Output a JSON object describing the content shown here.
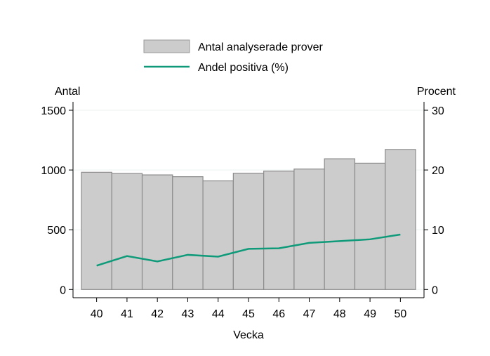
{
  "chart_data": {
    "type": "bar",
    "categories": [
      "40",
      "41",
      "42",
      "43",
      "44",
      "45",
      "46",
      "47",
      "48",
      "49",
      "50"
    ],
    "xlabel": "Vecka",
    "ylabel_left": "Antal",
    "ylabel_right": "Procent",
    "ylim_left": [
      0,
      1500
    ],
    "yticks_left": [
      0,
      500,
      1000,
      1500
    ],
    "ylim_right": [
      0,
      30
    ],
    "yticks_right": [
      0,
      10,
      20,
      30
    ],
    "grid": true,
    "legend_placement": "top",
    "series": [
      {
        "name": "Antal analyserade prover",
        "type": "bar",
        "axis": "left",
        "color": "#cccccc",
        "values": [
          981,
          971,
          959,
          944,
          909,
          973,
          991,
          1008,
          1094,
          1057,
          1172
        ]
      },
      {
        "name": "Andel positiva (%)",
        "type": "line",
        "axis": "right",
        "color": "#0f9b7a",
        "values": [
          4.0,
          5.6,
          4.7,
          5.8,
          5.5,
          6.8,
          6.9,
          7.8,
          8.1,
          8.4,
          9.2
        ]
      }
    ]
  }
}
